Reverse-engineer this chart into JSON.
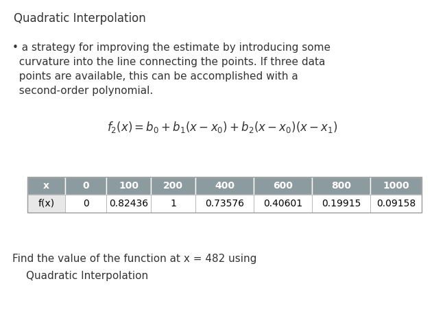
{
  "title": "Quadratic Interpolation",
  "bullet_line1": "• a strategy for improving the estimate by introducing some",
  "bullet_line2": "  curvature into the line connecting the points. If three data",
  "bullet_line3": "  points are available, this can be accomplished with a",
  "bullet_line4": "  second-order polynomial.",
  "formula": "$f_2(x) = b_0 + b_1(x - x_0) + b_2(x - x_0)(x - x_1)$",
  "table_headers": [
    "x",
    "0",
    "100",
    "200",
    "400",
    "600",
    "800",
    "1000"
  ],
  "table_row_label": "f(x)",
  "table_row_values": [
    "0",
    "0.82436",
    "1",
    "0.73576",
    "0.40601",
    "0.19915",
    "0.09158"
  ],
  "header_bg_color": "#8c9ba0",
  "header_text_color": "#ffffff",
  "row_label_bg": "#e8e8e8",
  "row_bg_color": "#ffffff",
  "row_text_color": "#000000",
  "table_border_color": "#aaaaaa",
  "footer_line1": "Find the value of the function at x = 482 using",
  "footer_line2": "Quadratic Interpolation",
  "bg_color": "#ffffff",
  "text_color": "#333333",
  "title_fontsize": 12,
  "body_fontsize": 11,
  "formula_fontsize": 12,
  "table_fontsize": 10,
  "footer_fontsize": 11
}
